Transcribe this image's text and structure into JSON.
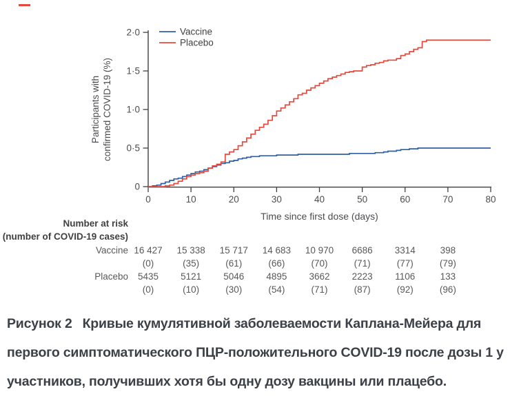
{
  "colors": {
    "vaccine_blue": "#2e5fa3",
    "placebo_red": "#e8483b",
    "axis_gray": "#3e3f41",
    "label_gray": "#4b4c4f",
    "table_gray": "#57585b",
    "caption_dark": "#3c4148"
  },
  "chart_data": {
    "type": "line",
    "subtype": "kaplan-meier-step",
    "title": "",
    "xlabel": "Time since first dose (days)",
    "ylabel_lines": [
      "Participants with",
      "confirmed COVID-19 (%)"
    ],
    "xlim": [
      0,
      80
    ],
    "ylim": [
      0,
      2
    ],
    "xticks": [
      0,
      10,
      20,
      30,
      40,
      50,
      60,
      70,
      80
    ],
    "yticks": [
      0,
      0.5,
      1,
      1.5,
      2
    ],
    "ytick_labels": [
      "0",
      "0·5",
      "1·0",
      "1·5",
      "2·0"
    ],
    "grid": false,
    "legend_position": "top-left-inside",
    "legend": [
      {
        "name": "Vaccine",
        "color": "#2e5fa3"
      },
      {
        "name": "Placebo",
        "color": "#e8483b"
      }
    ],
    "series": [
      {
        "name": "Vaccine",
        "color": "#2e5fa3",
        "points": [
          [
            0,
            0
          ],
          [
            1,
            0.01
          ],
          [
            2,
            0.02
          ],
          [
            3,
            0.04
          ],
          [
            4,
            0.06
          ],
          [
            5,
            0.08
          ],
          [
            6,
            0.1
          ],
          [
            7,
            0.11
          ],
          [
            8,
            0.13
          ],
          [
            9,
            0.15
          ],
          [
            10,
            0.17
          ],
          [
            11,
            0.19
          ],
          [
            12,
            0.2
          ],
          [
            13,
            0.22
          ],
          [
            14,
            0.24
          ],
          [
            15,
            0.26
          ],
          [
            16,
            0.28
          ],
          [
            17,
            0.3
          ],
          [
            18,
            0.31
          ],
          [
            19,
            0.33
          ],
          [
            20,
            0.34
          ],
          [
            21,
            0.36
          ],
          [
            22,
            0.37
          ],
          [
            23,
            0.38
          ],
          [
            24,
            0.39
          ],
          [
            26,
            0.4
          ],
          [
            30,
            0.41
          ],
          [
            35,
            0.42
          ],
          [
            44,
            0.42
          ],
          [
            47,
            0.43
          ],
          [
            53,
            0.44
          ],
          [
            55,
            0.45
          ],
          [
            56,
            0.46
          ],
          [
            58,
            0.47
          ],
          [
            59,
            0.48
          ],
          [
            61,
            0.49
          ],
          [
            63,
            0.5
          ],
          [
            80,
            0.5
          ]
        ]
      },
      {
        "name": "Placebo",
        "color": "#e8483b",
        "points": [
          [
            0,
            0
          ],
          [
            4,
            0.01
          ],
          [
            5,
            0.02
          ],
          [
            6,
            0.04
          ],
          [
            7,
            0.07
          ],
          [
            8,
            0.1
          ],
          [
            9,
            0.13
          ],
          [
            10,
            0.15
          ],
          [
            11,
            0.17
          ],
          [
            12,
            0.18
          ],
          [
            13,
            0.2
          ],
          [
            14,
            0.24
          ],
          [
            15,
            0.27
          ],
          [
            16,
            0.29
          ],
          [
            17,
            0.32
          ],
          [
            18,
            0.42
          ],
          [
            19,
            0.45
          ],
          [
            20,
            0.48
          ],
          [
            21,
            0.53
          ],
          [
            22,
            0.58
          ],
          [
            23,
            0.63
          ],
          [
            24,
            0.68
          ],
          [
            25,
            0.73
          ],
          [
            26,
            0.77
          ],
          [
            27,
            0.81
          ],
          [
            28,
            0.86
          ],
          [
            29,
            0.92
          ],
          [
            30,
            0.98
          ],
          [
            31,
            1.02
          ],
          [
            32,
            1.06
          ],
          [
            33,
            1.1
          ],
          [
            34,
            1.14
          ],
          [
            35,
            1.19
          ],
          [
            36,
            1.21
          ],
          [
            37,
            1.25
          ],
          [
            38,
            1.28
          ],
          [
            39,
            1.31
          ],
          [
            40,
            1.34
          ],
          [
            41,
            1.37
          ],
          [
            42,
            1.4
          ],
          [
            43,
            1.42
          ],
          [
            44,
            1.44
          ],
          [
            45,
            1.46
          ],
          [
            46,
            1.48
          ],
          [
            47,
            1.49
          ],
          [
            48,
            1.5
          ],
          [
            50,
            1.55
          ],
          [
            51,
            1.57
          ],
          [
            52,
            1.58
          ],
          [
            53,
            1.6
          ],
          [
            54,
            1.61
          ],
          [
            55,
            1.63
          ],
          [
            56,
            1.64
          ],
          [
            58,
            1.66
          ],
          [
            59,
            1.7
          ],
          [
            60,
            1.72
          ],
          [
            61,
            1.75
          ],
          [
            62,
            1.78
          ],
          [
            63,
            1.8
          ],
          [
            64,
            1.88
          ],
          [
            65,
            1.9
          ],
          [
            80,
            1.9
          ]
        ]
      }
    ]
  },
  "risk_table": {
    "header_line1": "Number at risk",
    "header_line2": "(number of COVID-19 cases)",
    "columns_days": [
      0,
      10,
      20,
      30,
      40,
      50,
      60,
      70
    ],
    "rows": [
      {
        "label": "Vaccine",
        "values": [
          "16 427",
          "15 338",
          "15 717",
          "14 683",
          "10 970",
          "6686",
          "3314",
          "398"
        ],
        "cases": [
          "(0)",
          "(35)",
          "(61)",
          "(66)",
          "(70)",
          "(71)",
          "(77)",
          "(79)"
        ]
      },
      {
        "label": "Placebo",
        "values": [
          "5435",
          "5121",
          "5046",
          "4895",
          "3662",
          "2223",
          "1106",
          "133"
        ],
        "cases": [
          "(0)",
          "(10)",
          "(30)",
          "(54)",
          "(71)",
          "(87)",
          "(92)",
          "(96)"
        ]
      }
    ]
  },
  "caption": {
    "label": "Рисунок 2",
    "lines": [
      "Кривые кумулятивной заболеваемости Каплана-Мейера для",
      "первого симптоматического ПЦР-положительного COVID-19 после дозы 1 у",
      "участников, получивших хотя бы одну дозу вакцины или плацебо."
    ]
  }
}
